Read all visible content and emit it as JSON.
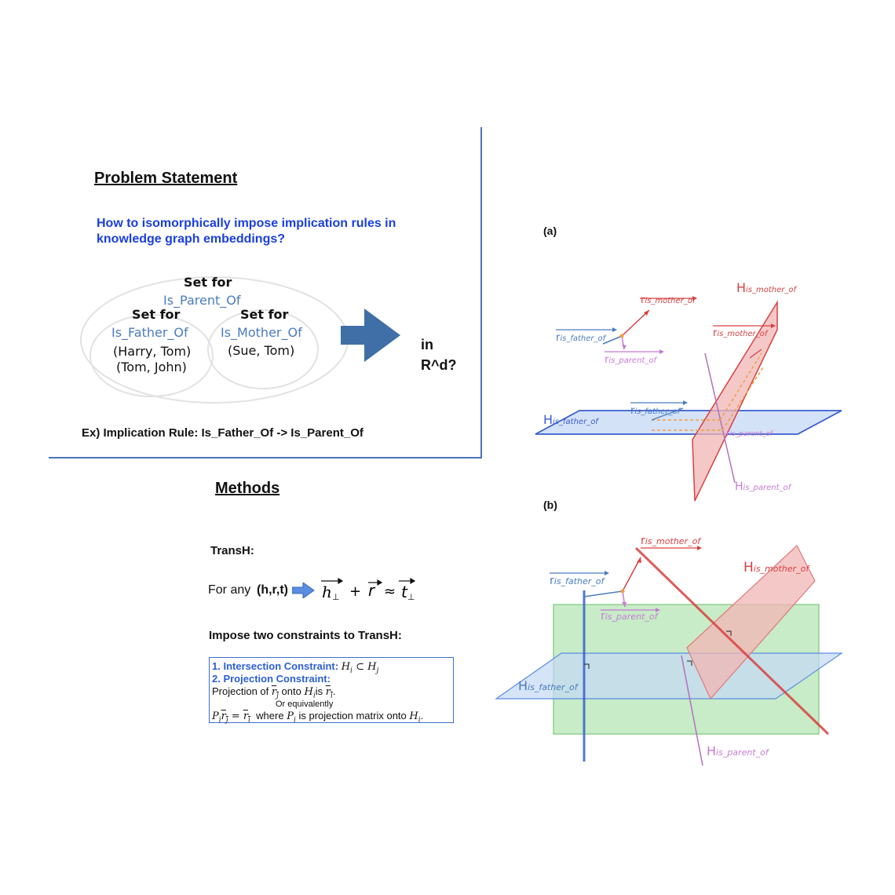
{
  "problem": {
    "title": "Problem Statement",
    "question_line1": "How to isomorphically impose implication rules in",
    "question_line2": "knowledge graph embeddings?",
    "set_for_outer": "Set for",
    "outer_relation": "Is_Parent_Of",
    "set_for_father": "Set for",
    "father_relation": "Is_Father_Of",
    "father_pair1": "(Harry, Tom)",
    "father_pair2": "(Tom, John)",
    "set_for_mother": "Set for",
    "mother_relation": "Is_Mother_Of",
    "mother_pair1": "(Sue, Tom)",
    "in_text_line1": "in",
    "in_text_line2": "R^d?",
    "example_rule": "Ex) Implication Rule: Is_Father_Of -> Is_Parent_Of"
  },
  "methods": {
    "title": "Methods",
    "transh_label": "TransH:",
    "for_any": "For any",
    "hrt": "(h,r,t)",
    "formula_h": "h",
    "formula_plus": "+",
    "formula_r": "r",
    "formula_approx": "≈",
    "formula_t": "t",
    "perp": "⊥",
    "impose_title": "Impose two constraints to TransH:",
    "constraint1_label": "1. Intersection Constraint:",
    "constraint1_math": "H",
    "constraint1_sub_i": "i",
    "constraint1_subset": " ⊂ ",
    "constraint1_math2": "H",
    "constraint1_sub_j": "j",
    "constraint2_label": "2. Projection Constraint:",
    "proj_text_a": "Projection of",
    "proj_rj": "r",
    "proj_rj_sub": "j",
    "proj_onto": "onto",
    "proj_hi": "H",
    "proj_hi_sub": "i",
    "proj_is": "is",
    "proj_ri": "r",
    "proj_ri_sub": "i",
    "proj_period": ".",
    "or_equiv": "Or equivalently",
    "eq_p": "P",
    "eq_p_sub": "i",
    "eq_r": "r",
    "eq_r_sub": "j",
    "eq_equals": " = ",
    "eq_r2": "r",
    "eq_r2_sub": "i",
    "eq_where": "where",
    "eq_p2": "P",
    "eq_p2_sub": "i",
    "eq_desc": "is projection matrix onto",
    "eq_h": "H",
    "eq_h_sub": "i",
    "eq_period": "."
  },
  "figure_a": {
    "label": "(a)",
    "r_base": "r",
    "H_base": "H",
    "sub_mother_of": "is_mother_of",
    "sub_father_of": "is_father_of",
    "sub_parent_of": "is_parent_of"
  },
  "figure_b": {
    "label": "(b)"
  },
  "colors": {
    "red": "#d94040",
    "blue": "#3a5ed0",
    "pink": "#c77ad6",
    "green": "#8fd98f",
    "lightblue": "#c5d8f5",
    "lightred": "#f2b5b5",
    "arrow": "#3f6fa6"
  }
}
